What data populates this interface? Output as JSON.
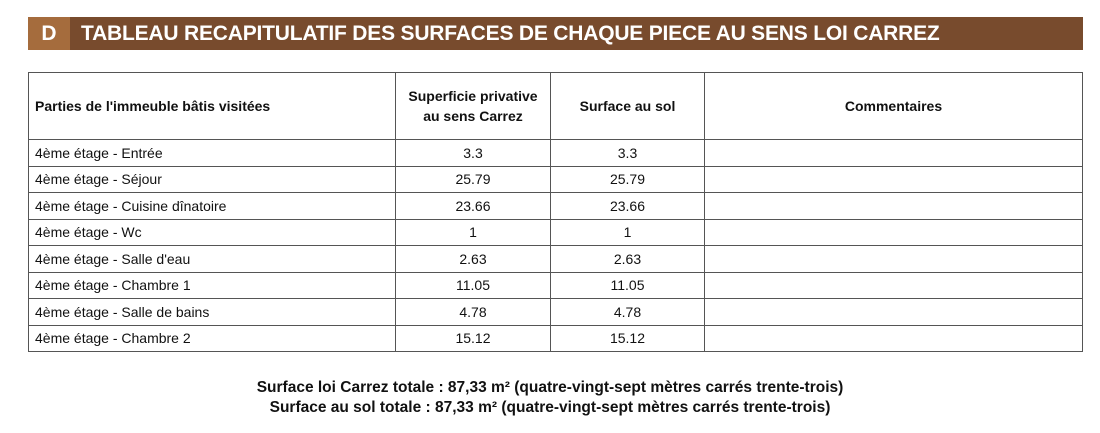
{
  "section": {
    "letter": "D",
    "title": "TABLEAU RECAPITULATIF DES SURFACES DE CHAQUE PIECE AU SENS LOI CARREZ"
  },
  "table": {
    "headers": [
      "Parties de l'immeuble bâtis visitées",
      "Superficie privative au sens Carrez",
      "Surface au sol",
      "Commentaires"
    ],
    "rows": [
      [
        "4ème étage - Entrée",
        "3.3",
        "3.3",
        ""
      ],
      [
        "4ème étage - Séjour",
        "25.79",
        "25.79",
        ""
      ],
      [
        "4ème étage - Cuisine dînatoire",
        "23.66",
        "23.66",
        ""
      ],
      [
        "4ème étage - Wc",
        "1",
        "1",
        ""
      ],
      [
        "4ème étage - Salle d'eau",
        "2.63",
        "2.63",
        ""
      ],
      [
        "4ème étage - Chambre 1",
        "11.05",
        "11.05",
        ""
      ],
      [
        "4ème étage - Salle de bains",
        "4.78",
        "4.78",
        ""
      ],
      [
        "4ème étage - Chambre 2",
        "15.12",
        "15.12",
        ""
      ]
    ]
  },
  "totals": {
    "carrez": "Surface loi Carrez totale : 87,33 m² (quatre-vingt-sept mètres carrés trente-trois)",
    "sol": "Surface au sol totale : 87,33 m² (quatre-vingt-sept mètres carrés trente-trois)"
  }
}
